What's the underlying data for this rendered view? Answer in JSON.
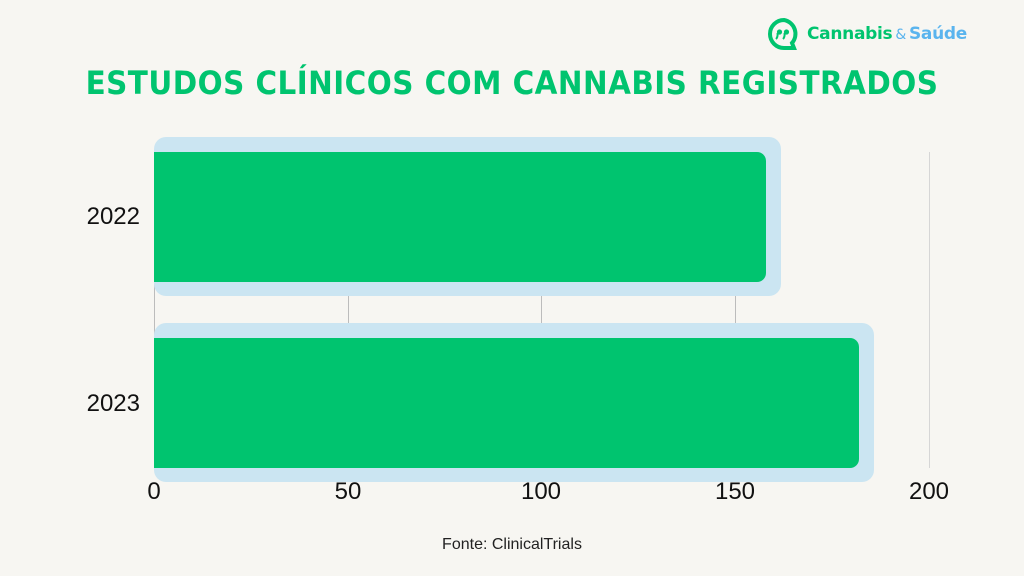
{
  "brand": {
    "name_part1": "Cannabis",
    "ampersand": "&",
    "name_part2": "Saúde",
    "icon": "speech-bubble-quote-icon",
    "colors": {
      "green": "#00c46f",
      "blue": "#5ab4ee"
    }
  },
  "title": "ESTUDOS CLÍNICOS COM CANNABIS REGISTRADOS",
  "source": "Fonte: ClinicalTrials",
  "colors": {
    "bar": "#00c46f",
    "bar_backing": "#cbe5f2",
    "background": "#f7f6f2",
    "title": "#00c46f"
  },
  "chart_data": {
    "type": "bar",
    "orientation": "horizontal",
    "title": "ESTUDOS CLÍNICOS COM CANNABIS REGISTRADOS",
    "categories": [
      "2022",
      "2023"
    ],
    "values": [
      158,
      182
    ],
    "xlabel": "",
    "ylabel": "",
    "xlim": [
      0,
      200
    ],
    "xticks": [
      "0",
      "50",
      "100",
      "150",
      "200"
    ],
    "grid": true,
    "legend": null,
    "source": "Fonte: ClinicalTrials"
  }
}
